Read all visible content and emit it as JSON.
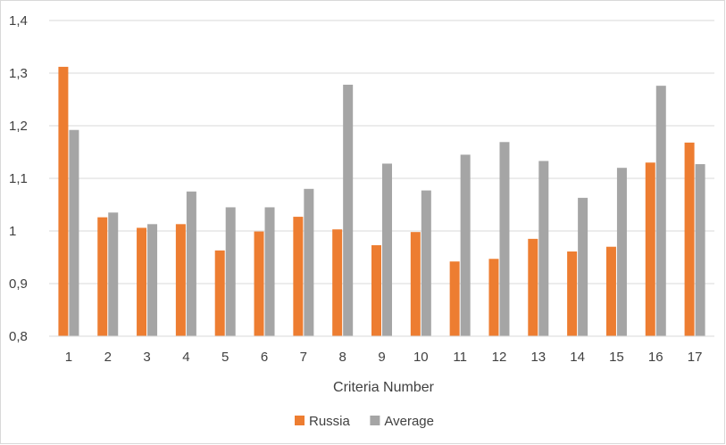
{
  "chart_data": {
    "type": "bar",
    "title": "",
    "xlabel": "Criteria Number",
    "ylabel": "",
    "ylim": [
      0.8,
      1.4
    ],
    "y_ticks": [
      "0,8",
      "0,9",
      "1",
      "1,1",
      "1,2",
      "1,3",
      "1,4"
    ],
    "grid": true,
    "legend_position": "bottom",
    "categories": [
      "1",
      "2",
      "3",
      "4",
      "5",
      "6",
      "7",
      "8",
      "9",
      "10",
      "11",
      "12",
      "13",
      "14",
      "15",
      "16",
      "17"
    ],
    "series": [
      {
        "name": "Russia",
        "color": "#ED7D31",
        "values": [
          1.312,
          1.026,
          1.006,
          1.013,
          0.963,
          0.999,
          1.027,
          1.003,
          0.973,
          0.998,
          0.942,
          0.947,
          0.985,
          0.961,
          0.97,
          1.13,
          1.168
        ]
      },
      {
        "name": "Average",
        "color": "#A5A5A5",
        "values": [
          1.192,
          1.035,
          1.013,
          1.075,
          1.045,
          1.045,
          1.08,
          1.278,
          1.128,
          1.077,
          1.145,
          1.169,
          1.133,
          1.063,
          1.12,
          1.276,
          1.127
        ]
      }
    ]
  }
}
